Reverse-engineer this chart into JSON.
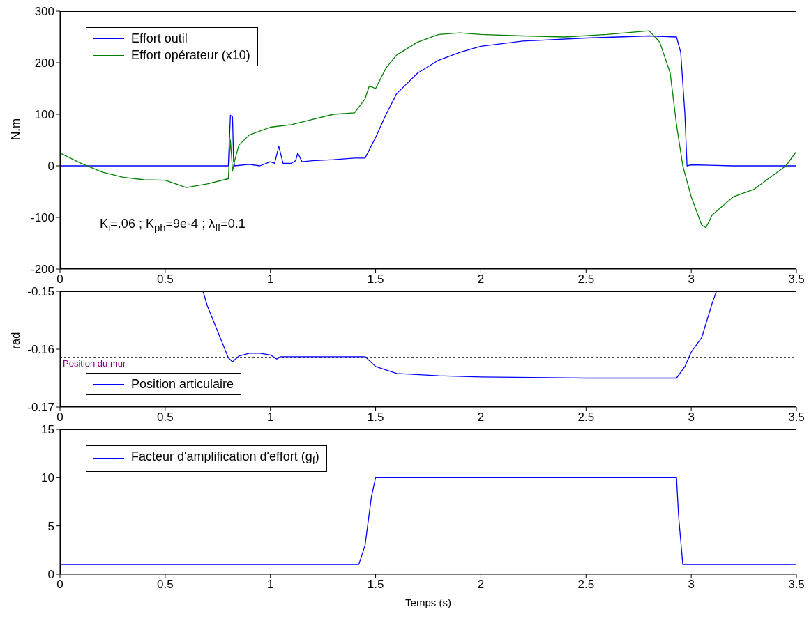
{
  "chart_data": [
    {
      "type": "line",
      "ylabel": "N.m",
      "xlim": [
        0,
        3.5
      ],
      "xticks": [
        0,
        0.5,
        1,
        1.5,
        2,
        2.5,
        3,
        3.5
      ],
      "ylim": [
        -200,
        300
      ],
      "yticks": [
        -200,
        -100,
        0,
        100,
        200,
        300
      ],
      "grid": false,
      "legend": "top left",
      "marker": "none",
      "line_style": "solid",
      "annotations": [
        "K$_{i}$=.06 ; K$_{ph}$=9e-4 ; λ$_{ff}$=0.1"
      ],
      "series": [
        {
          "name": "Effort outil",
          "color": "#0000ff",
          "x": [
            0,
            0.2,
            0.4,
            0.6,
            0.8,
            0.805,
            0.81,
            0.82,
            0.825,
            0.83,
            0.9,
            0.95,
            1.0,
            1.02,
            1.04,
            1.06,
            1.1,
            1.12,
            1.13,
            1.15,
            1.2,
            1.3,
            1.4,
            1.45,
            1.5,
            1.55,
            1.6,
            1.65,
            1.7,
            1.8,
            1.9,
            2.0,
            2.2,
            2.5,
            2.8,
            2.93,
            2.95,
            2.97,
            2.98,
            3.0,
            3.2,
            3.5
          ],
          "values": [
            0,
            0,
            0,
            0,
            0,
            50,
            98,
            95,
            10,
            0,
            3,
            0,
            8,
            5,
            38,
            5,
            5,
            10,
            25,
            8,
            10,
            12,
            15,
            15,
            55,
            100,
            140,
            160,
            180,
            205,
            220,
            232,
            242,
            248,
            252,
            250,
            220,
            100,
            0,
            2,
            0,
            0
          ]
        },
        {
          "name": "Effort opérateur (x10)",
          "color": "#008000",
          "x": [
            0,
            0.1,
            0.2,
            0.3,
            0.4,
            0.5,
            0.6,
            0.7,
            0.8,
            0.81,
            0.82,
            0.83,
            0.85,
            0.9,
            1.0,
            1.1,
            1.2,
            1.3,
            1.4,
            1.45,
            1.47,
            1.5,
            1.55,
            1.6,
            1.7,
            1.8,
            1.9,
            2.0,
            2.2,
            2.4,
            2.6,
            2.8,
            2.85,
            2.9,
            2.93,
            2.96,
            3.0,
            3.05,
            3.07,
            3.1,
            3.2,
            3.3,
            3.4,
            3.45,
            3.5
          ],
          "values": [
            25,
            5,
            -12,
            -22,
            -27,
            -28,
            -42,
            -35,
            -25,
            50,
            -10,
            10,
            40,
            60,
            75,
            80,
            90,
            100,
            103,
            130,
            155,
            150,
            190,
            215,
            240,
            255,
            258,
            255,
            252,
            250,
            255,
            262,
            240,
            180,
            80,
            0,
            -60,
            -115,
            -120,
            -95,
            -60,
            -45,
            -15,
            0,
            28
          ]
        }
      ]
    },
    {
      "type": "line",
      "ylabel": "rad",
      "xlim": [
        0,
        3.5
      ],
      "xticks": [
        0,
        0.5,
        1,
        1.5,
        2,
        2.5,
        3,
        3.5
      ],
      "ylim": [
        -0.17,
        -0.15
      ],
      "yticks": [
        -0.17,
        -0.16,
        -0.15
      ],
      "grid": false,
      "legend": "bottom left",
      "marker": "none",
      "line_style": "solid",
      "ref_lines": [
        {
          "axis": "y",
          "value": -0.1614,
          "label": "Position du mur",
          "color": "#000000",
          "line_style": "dashed"
        }
      ],
      "series": [
        {
          "name": "Position articulaire",
          "color": "#0000ff",
          "x": [
            0.68,
            0.7,
            0.75,
            0.8,
            0.82,
            0.85,
            0.9,
            0.95,
            1.0,
            1.03,
            1.05,
            1.1,
            1.45,
            1.5,
            1.6,
            1.8,
            2.0,
            2.5,
            2.93,
            2.97,
            3.0,
            3.05,
            3.1,
            3.12
          ],
          "values": [
            -0.15,
            -0.1525,
            -0.157,
            -0.1615,
            -0.1622,
            -0.1612,
            -0.1607,
            -0.1607,
            -0.161,
            -0.1617,
            -0.1613,
            -0.1613,
            -0.1613,
            -0.163,
            -0.1642,
            -0.1646,
            -0.1648,
            -0.165,
            -0.165,
            -0.163,
            -0.1605,
            -0.158,
            -0.152,
            -0.15
          ]
        }
      ]
    },
    {
      "type": "line",
      "xlabel": "Temps (s)",
      "xlim": [
        0,
        3.5
      ],
      "xticks": [
        0,
        0.5,
        1,
        1.5,
        2,
        2.5,
        3,
        3.5
      ],
      "ylim": [
        0,
        15
      ],
      "yticks": [
        0,
        5,
        10,
        15
      ],
      "grid": false,
      "legend": "top left",
      "marker": "none",
      "line_style": "solid",
      "series": [
        {
          "name": "Facteur d'amplification d'effort (g$_{f}$)",
          "color": "#0000ff",
          "x": [
            0,
            1.42,
            1.45,
            1.48,
            1.5,
            2.93,
            2.94,
            2.96,
            3.5
          ],
          "values": [
            1,
            1,
            3,
            8,
            10,
            10,
            6,
            1,
            1
          ]
        }
      ]
    }
  ]
}
